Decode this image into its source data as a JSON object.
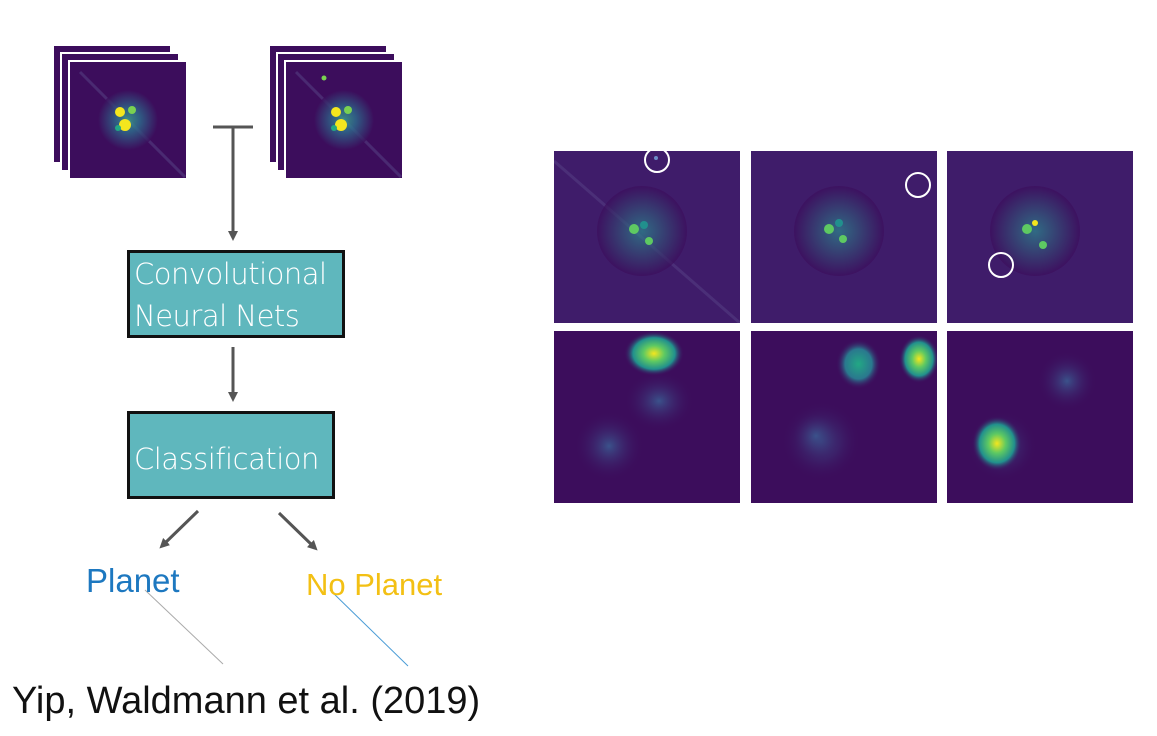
{
  "pipeline": {
    "cnn_box_line1": "Convolutional",
    "cnn_box_line2": "Neural Nets",
    "classification_box": "Classification"
  },
  "outputs": {
    "planet": "Planet",
    "no_planet": "No Planet"
  },
  "citation": "Yip, Waldmann et al. (2019)",
  "colors": {
    "box_fill": "#5fb7bd",
    "planet_text": "#1d78c0",
    "no_planet_text": "#f3c014",
    "arrow": "#555555",
    "viridis_dark": "#3c0d5c",
    "viridis_mid": "#2a9c8f",
    "viridis_bright": "#f4e61e"
  },
  "icons": [
    "stacked-image-icon",
    "arrow-icon",
    "circle-marker-icon"
  ]
}
